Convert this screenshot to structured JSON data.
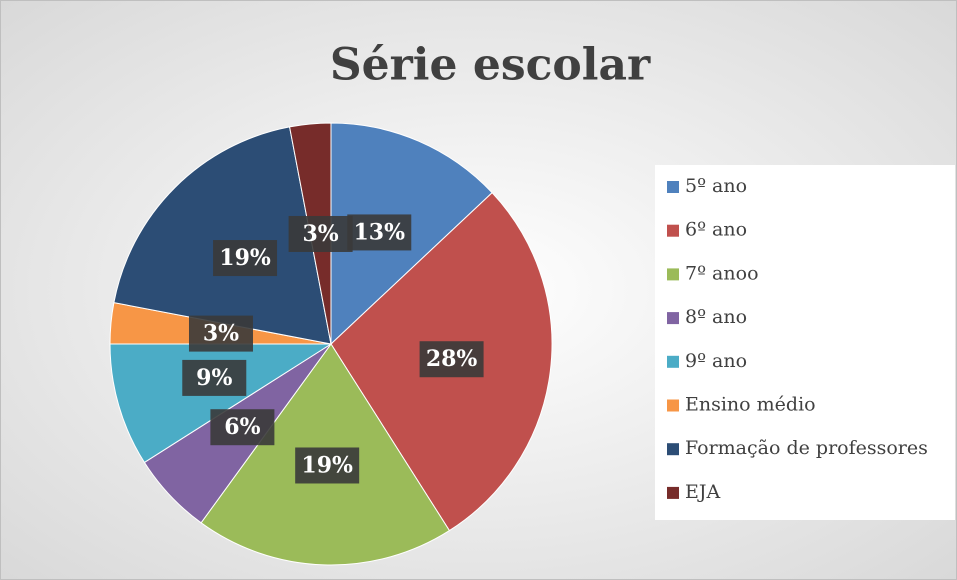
{
  "chart_data": {
    "type": "pie",
    "title": "Série escolar",
    "categories": [
      "5º ano",
      "6º ano",
      "7º anoo",
      "8º ano",
      "9º ano",
      "Ensino médio",
      "Formação de professores",
      "EJA"
    ],
    "values": [
      13,
      28,
      19,
      6,
      9,
      3,
      19,
      3
    ],
    "value_labels": [
      "13%",
      "28%",
      "19%",
      "6%",
      "9%",
      "3%",
      "19%",
      "3%"
    ],
    "colors": [
      "#4f81bd",
      "#c0504d",
      "#9bbb59",
      "#8064a2",
      "#4bacc6",
      "#f79646",
      "#2c4d75",
      "#772c2a"
    ],
    "legend": "right"
  }
}
